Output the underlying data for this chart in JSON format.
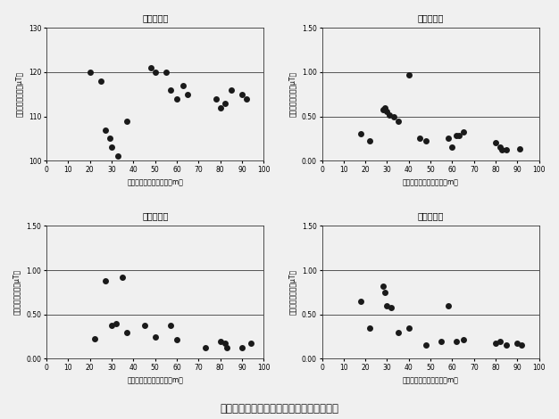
{
  "title_main": "図３　送電線からの距離別平均磁界レベル",
  "plots": [
    {
      "title": "米１回調査",
      "xlabel": "送電線からの水平距離（m）",
      "ylabel": "平均磁界レベル（μT）",
      "xlim": [
        0,
        100
      ],
      "ylim": [
        100,
        130
      ],
      "yticks": [
        100,
        110,
        120,
        130
      ],
      "hlines": [
        120
      ],
      "x": [
        20,
        25,
        27,
        29,
        30,
        33,
        37,
        48,
        50,
        55,
        57,
        60,
        63,
        65,
        78,
        80,
        82,
        85,
        90,
        92
      ],
      "y": [
        120,
        118,
        107,
        105,
        103,
        101,
        109,
        121,
        120,
        120,
        116,
        114,
        117,
        115,
        114,
        112,
        113,
        116,
        115,
        114
      ]
    },
    {
      "title": "第３回調査",
      "xlabel": "送電線からの水平距離｛m｝",
      "ylabel": "平均磁界レベル（μT）",
      "xlim": [
        0,
        100
      ],
      "ylim": [
        0.0,
        1.5
      ],
      "yticks": [
        0.0,
        0.5,
        1.0,
        1.5
      ],
      "hlines": [
        0.5,
        1.0
      ],
      "x": [
        18,
        22,
        28,
        29,
        30,
        31,
        33,
        35,
        40,
        45,
        48,
        58,
        60,
        62,
        63,
        65,
        80,
        82,
        83,
        85,
        91
      ],
      "y": [
        0.3,
        0.22,
        0.58,
        0.6,
        0.56,
        0.52,
        0.5,
        0.45,
        0.97,
        0.25,
        0.22,
        0.25,
        0.15,
        0.28,
        0.28,
        0.32,
        0.2,
        0.15,
        0.12,
        0.12,
        0.13
      ]
    },
    {
      "title": "第４回調査",
      "xlabel": "送電線からの水平距離｛m｝",
      "ylabel": "平均磁界レベル（μT）",
      "xlim": [
        0,
        100
      ],
      "ylim": [
        0.0,
        1.5
      ],
      "yticks": [
        0.0,
        0.5,
        1.0,
        1.5
      ],
      "hlines": [
        0.5,
        1.0
      ],
      "x": [
        22,
        27,
        30,
        32,
        35,
        37,
        45,
        50,
        57,
        60,
        73,
        80,
        82,
        83,
        90,
        94
      ],
      "y": [
        0.23,
        0.88,
        0.38,
        0.4,
        0.92,
        0.3,
        0.38,
        0.25,
        0.38,
        0.22,
        0.12,
        0.2,
        0.18,
        0.12,
        0.12,
        0.18
      ]
    },
    {
      "title": "第１回調査",
      "xlabel": "送電線からの水平距離｛m｝",
      "ylabel": "平均磁界レベル（μT）",
      "xlim": [
        0,
        100
      ],
      "ylim": [
        0.0,
        1.5
      ],
      "yticks": [
        0.0,
        0.5,
        1.0,
        1.5
      ],
      "hlines": [
        0.5,
        1.0
      ],
      "x": [
        18,
        22,
        28,
        29,
        30,
        32,
        35,
        40,
        48,
        55,
        58,
        62,
        65,
        80,
        82,
        85,
        90,
        92
      ],
      "y": [
        0.65,
        0.35,
        0.82,
        0.75,
        0.6,
        0.58,
        0.3,
        0.35,
        0.15,
        0.2,
        0.6,
        0.2,
        0.22,
        0.18,
        0.2,
        0.15,
        0.18,
        0.15
      ]
    }
  ],
  "marker_color": "#1a1a1a",
  "marker_size": 5,
  "line_color": "#555555",
  "line_width": 0.7,
  "font_color": "#1a1a1a",
  "bg_color": "#f0f0f0",
  "title_fontsize": 7,
  "axis_label_fontsize": 5.5,
  "tick_fontsize": 5.5,
  "main_title_fontsize": 8.5
}
